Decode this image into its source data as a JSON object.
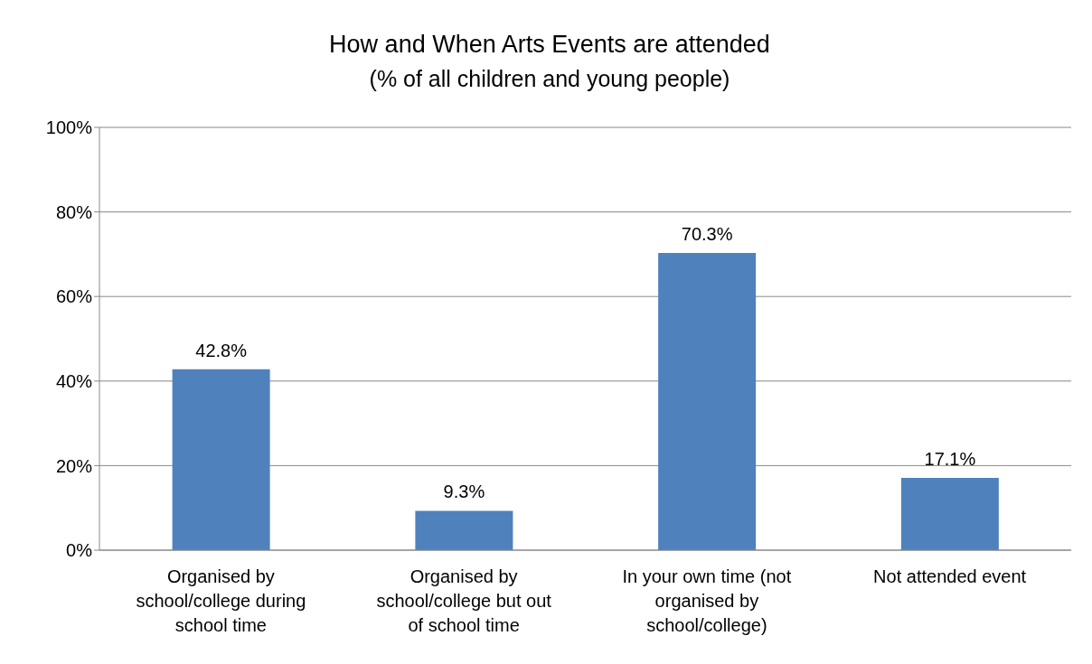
{
  "chart_data": {
    "type": "bar",
    "title": "How and When Arts Events are attended",
    "subtitle": "(% of all children and young people)",
    "categories": [
      "Organised by school/college during school time",
      "Organised by school/college but out of school time",
      "In your own time (not organised by school/college)",
      "Not attended event"
    ],
    "values": [
      42.8,
      9.3,
      70.3,
      17.1
    ],
    "value_labels": [
      "42.8%",
      "9.3%",
      "70.3%",
      "17.1%"
    ],
    "color": "#4f81bd",
    "ylim": [
      0,
      100
    ],
    "yticks": [
      {
        "value": 0,
        "label": "0%"
      },
      {
        "value": 20,
        "label": "20%"
      },
      {
        "value": 40,
        "label": "40%"
      },
      {
        "value": 60,
        "label": "60%"
      },
      {
        "value": 80,
        "label": "80%"
      },
      {
        "value": 100,
        "label": "100%"
      }
    ],
    "grid": "y"
  }
}
